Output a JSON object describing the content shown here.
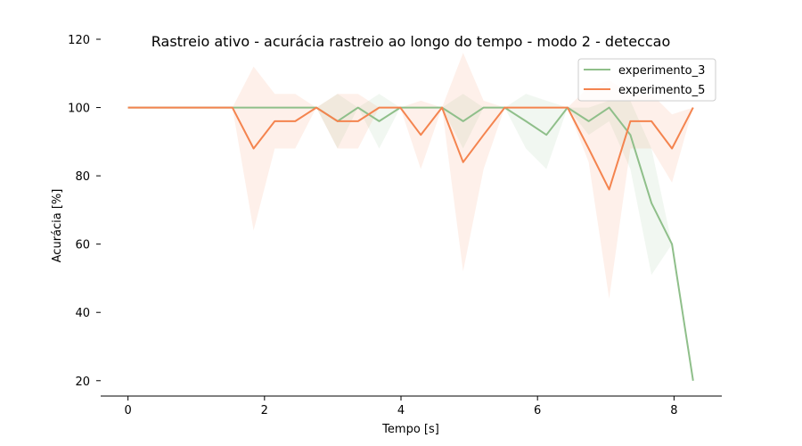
{
  "chart_data": {
    "type": "line",
    "title": "Rastreio ativo - acurácia rastreio ao longo do tempo - modo 2 - deteccao",
    "xlabel": "Tempo [s]",
    "ylabel": "Acurácia [%]",
    "xlim": [
      -0.4,
      8.7
    ],
    "ylim": [
      15.5,
      120
    ],
    "xticks": [
      0,
      2,
      4,
      6,
      8
    ],
    "yticks": [
      20,
      40,
      60,
      80,
      100,
      120
    ],
    "grid": false,
    "legend_position": "upper-right",
    "series": [
      {
        "name": "experimento_3",
        "color": "#8fbf8a",
        "x": [
          0,
          0.31,
          0.61,
          0.92,
          1.23,
          1.53,
          1.84,
          2.15,
          2.45,
          2.76,
          3.07,
          3.37,
          3.68,
          3.99,
          4.29,
          4.6,
          4.91,
          5.21,
          5.52,
          5.83,
          6.13,
          6.44,
          6.75,
          7.05,
          7.36,
          7.67,
          7.97,
          8.28
        ],
        "y": [
          100,
          100,
          100,
          100,
          100,
          100,
          100,
          100,
          100,
          100,
          96,
          100,
          96,
          100,
          100,
          100,
          96,
          100,
          100,
          96,
          92,
          100,
          96,
          100,
          92,
          72,
          60,
          20
        ],
        "lower": [
          100,
          100,
          100,
          100,
          100,
          100,
          100,
          100,
          100,
          100,
          88,
          100,
          88,
          100,
          100,
          100,
          88,
          100,
          100,
          88,
          82,
          100,
          92,
          96,
          82,
          51,
          60,
          20
        ],
        "upper": [
          100,
          100,
          100,
          100,
          100,
          100,
          100,
          100,
          100,
          100,
          104,
          100,
          104,
          100,
          100,
          100,
          104,
          100,
          100,
          104,
          102,
          100,
          100,
          102,
          102,
          88,
          60,
          20
        ]
      },
      {
        "name": "experimento_5",
        "color": "#f4844f",
        "x": [
          0,
          0.31,
          0.61,
          0.92,
          1.23,
          1.53,
          1.84,
          2.15,
          2.45,
          2.76,
          3.07,
          3.37,
          3.68,
          3.99,
          4.29,
          4.6,
          4.91,
          5.21,
          5.52,
          5.83,
          6.13,
          6.44,
          6.75,
          7.05,
          7.36,
          7.67,
          7.97,
          8.28
        ],
        "y": [
          100,
          100,
          100,
          100,
          100,
          100,
          88,
          96,
          96,
          100,
          96,
          96,
          100,
          100,
          92,
          100,
          84,
          92,
          100,
          100,
          100,
          100,
          88,
          76,
          96,
          96,
          88,
          100
        ],
        "lower": [
          100,
          100,
          100,
          100,
          100,
          100,
          64,
          88,
          88,
          100,
          88,
          88,
          100,
          100,
          82,
          100,
          52,
          82,
          100,
          100,
          100,
          100,
          84,
          44,
          88,
          88,
          78,
          100
        ],
        "upper": [
          100,
          100,
          100,
          100,
          100,
          100,
          112,
          104,
          104,
          100,
          104,
          104,
          100,
          100,
          102,
          100,
          116,
          102,
          100,
          100,
          100,
          100,
          106,
          108,
          104,
          104,
          98,
          100
        ]
      }
    ]
  }
}
